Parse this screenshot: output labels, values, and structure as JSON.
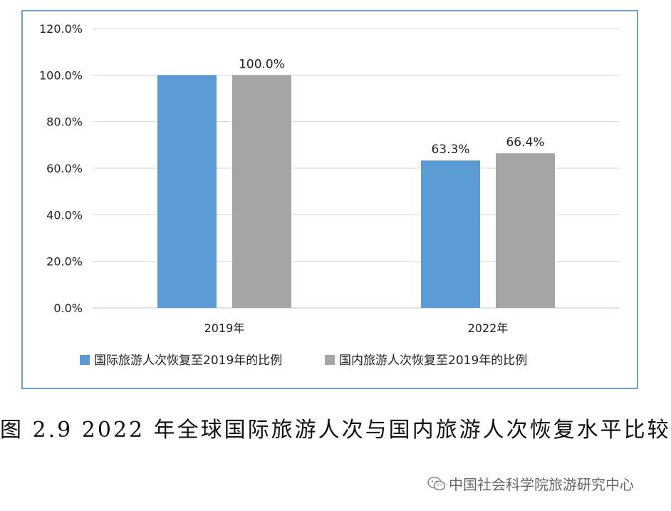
{
  "chart_data": {
    "type": "bar",
    "categories": [
      "2019年",
      "2022年"
    ],
    "series": [
      {
        "name": "国际旅游人次恢复至2019年的比例",
        "values": [
          100.0,
          63.3
        ],
        "labels": [
          "",
          "63.3%"
        ],
        "color": "#5b9bd5"
      },
      {
        "name": "国内旅游人次恢复至2019年的比例",
        "values": [
          100.0,
          66.4
        ],
        "labels": [
          "100.0%",
          "66.4%"
        ],
        "color": "#a5a5a5"
      }
    ],
    "ylim": [
      0,
      120
    ],
    "yticks": [
      "0.0%",
      "20.0%",
      "40.0%",
      "60.0%",
      "80.0%",
      "100.0%",
      "120.0%"
    ],
    "grid": true,
    "legend_position": "bottom"
  },
  "caption": "图 2.9 2022 年全球国际旅游人次与国内旅游人次恢复水平比较",
  "watermark": {
    "text": "中国社会科学院旅游研究中心",
    "icon": "wechat-icon"
  }
}
